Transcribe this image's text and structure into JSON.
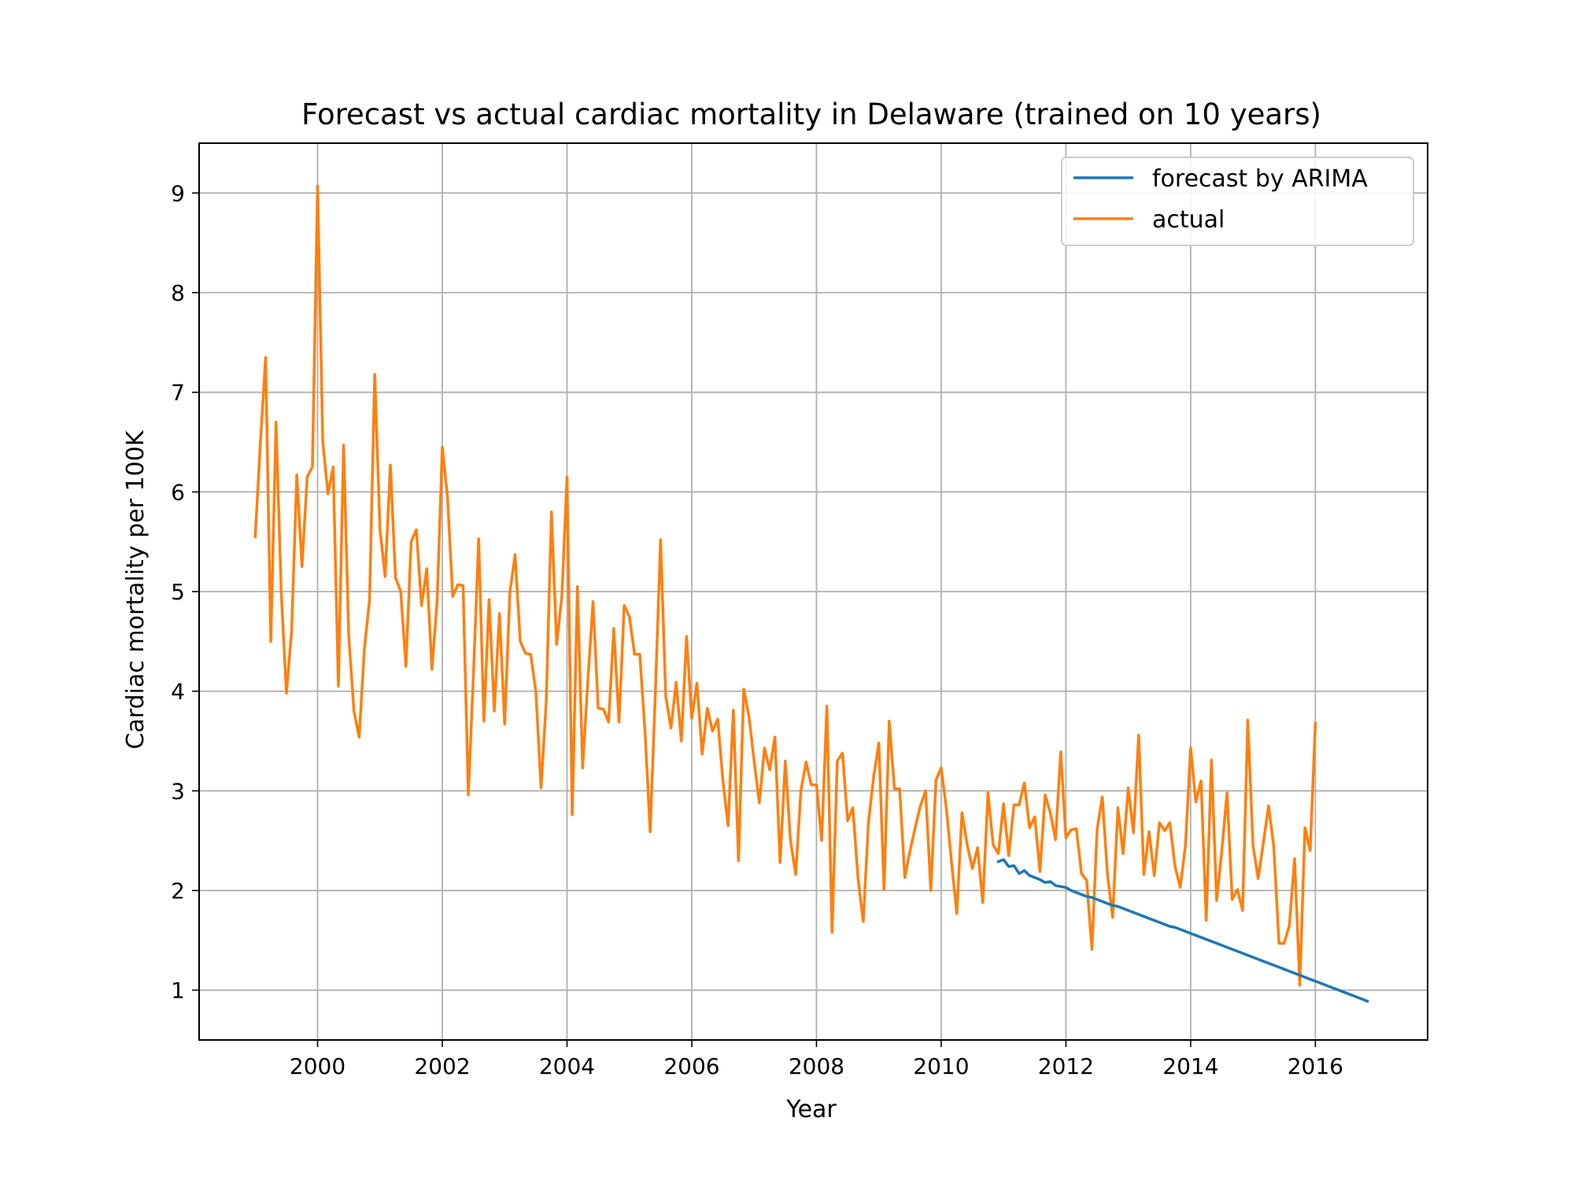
{
  "chart_data": {
    "type": "line",
    "title": "Forecast vs actual cardiac mortality in Delaware (trained on 10 years)",
    "xlabel": "Year",
    "ylabel": "Cardiac mortality per 100K",
    "xlim": [
      1998.1,
      2017.8
    ],
    "ylim": [
      0.5,
      9.5
    ],
    "xticks": [
      2000,
      2002,
      2004,
      2006,
      2008,
      2010,
      2012,
      2014,
      2016
    ],
    "xtick_labels": [
      "2000",
      "2002",
      "2004",
      "2006",
      "2008",
      "2010",
      "2012",
      "2014",
      "2016"
    ],
    "yticks": [
      1,
      2,
      3,
      4,
      5,
      6,
      7,
      8,
      9
    ],
    "ytick_labels": [
      "1",
      "2",
      "3",
      "4",
      "5",
      "6",
      "7",
      "8",
      "9"
    ],
    "grid": true,
    "legend_position": "top-right",
    "series": [
      {
        "name": "forecast by ARIMA",
        "color": "#1f77b4",
        "x_start": 2010.9167,
        "x_step": 0.083333,
        "values": [
          2.29,
          2.31,
          2.24,
          2.25,
          2.17,
          2.2,
          2.15,
          2.13,
          2.11,
          2.08,
          2.09,
          2.05,
          2.04,
          2.03,
          2.0,
          1.98,
          1.96,
          1.94,
          1.93,
          1.91,
          1.89,
          1.87,
          1.85,
          1.84,
          1.82,
          1.8,
          1.78,
          1.76,
          1.74,
          1.72,
          1.7,
          1.68,
          1.66,
          1.64,
          1.63,
          1.61,
          1.59,
          1.57,
          1.55,
          1.53,
          1.51,
          1.49,
          1.47,
          1.45,
          1.43,
          1.41,
          1.39,
          1.37,
          1.35,
          1.33,
          1.31,
          1.29,
          1.27,
          1.25,
          1.23,
          1.21,
          1.19,
          1.17,
          1.15,
          1.13,
          1.11,
          1.09,
          1.07,
          1.05,
          1.03,
          1.01,
          0.99,
          0.97,
          0.95,
          0.93,
          0.91,
          0.89
        ]
      },
      {
        "name": "actual",
        "color": "#ff7f0e",
        "x_start": 1999.0,
        "x_step": 0.083333,
        "values": [
          5.55,
          6.5,
          7.35,
          4.5,
          6.7,
          5.0,
          3.98,
          4.6,
          6.17,
          5.25,
          6.15,
          6.25,
          9.07,
          6.5,
          5.98,
          6.25,
          4.05,
          6.47,
          4.55,
          3.8,
          3.54,
          4.42,
          4.92,
          7.18,
          5.63,
          5.15,
          6.27,
          5.14,
          5.0,
          4.25,
          5.5,
          5.62,
          4.86,
          5.23,
          4.22,
          4.9,
          6.45,
          5.95,
          4.95,
          5.07,
          5.06,
          2.96,
          4.18,
          5.53,
          3.7,
          4.92,
          3.8,
          4.78,
          3.67,
          4.99,
          5.37,
          4.5,
          4.38,
          4.37,
          4.0,
          3.03,
          3.9,
          5.8,
          4.47,
          4.95,
          6.15,
          2.76,
          5.05,
          3.23,
          4.1,
          4.9,
          3.83,
          3.82,
          3.69,
          4.63,
          3.69,
          4.86,
          4.75,
          4.37,
          4.37,
          3.6,
          2.59,
          3.99,
          5.52,
          3.95,
          3.63,
          4.09,
          3.5,
          4.55,
          3.73,
          4.08,
          3.37,
          3.83,
          3.6,
          3.72,
          3.1,
          2.65,
          3.81,
          2.3,
          4.02,
          3.75,
          3.3,
          2.88,
          3.43,
          3.21,
          3.54,
          2.28,
          3.3,
          2.5,
          2.16,
          3.0,
          3.29,
          3.06,
          3.06,
          2.5,
          3.85,
          1.58,
          3.3,
          3.38,
          2.7,
          2.83,
          2.12,
          1.69,
          2.68,
          3.14,
          3.48,
          2.01,
          3.7,
          3.02,
          3.02,
          2.13,
          2.4,
          2.63,
          2.85,
          3.0,
          2.0,
          3.11,
          3.23,
          2.82,
          2.28,
          1.77,
          2.78,
          2.46,
          2.22,
          2.43,
          1.88,
          2.98,
          2.46,
          2.37,
          2.87,
          2.35,
          2.86,
          2.86,
          3.08,
          2.63,
          2.74,
          2.19,
          2.96,
          2.78,
          2.51,
          3.39,
          2.53,
          2.61,
          2.62,
          2.17,
          2.1,
          1.41,
          2.61,
          2.94,
          2.16,
          1.73,
          2.83,
          2.37,
          3.03,
          2.58,
          3.56,
          2.16,
          2.59,
          2.15,
          2.68,
          2.6,
          2.68,
          2.24,
          2.03,
          2.45,
          3.43,
          2.89,
          3.1,
          1.7,
          3.31,
          1.9,
          2.4,
          2.98,
          1.91,
          2.01,
          1.8,
          3.71,
          2.45,
          2.12,
          2.48,
          2.85,
          2.44,
          1.47,
          1.47,
          1.65,
          2.32,
          1.05,
          2.63,
          2.4,
          3.68
        ]
      }
    ]
  }
}
